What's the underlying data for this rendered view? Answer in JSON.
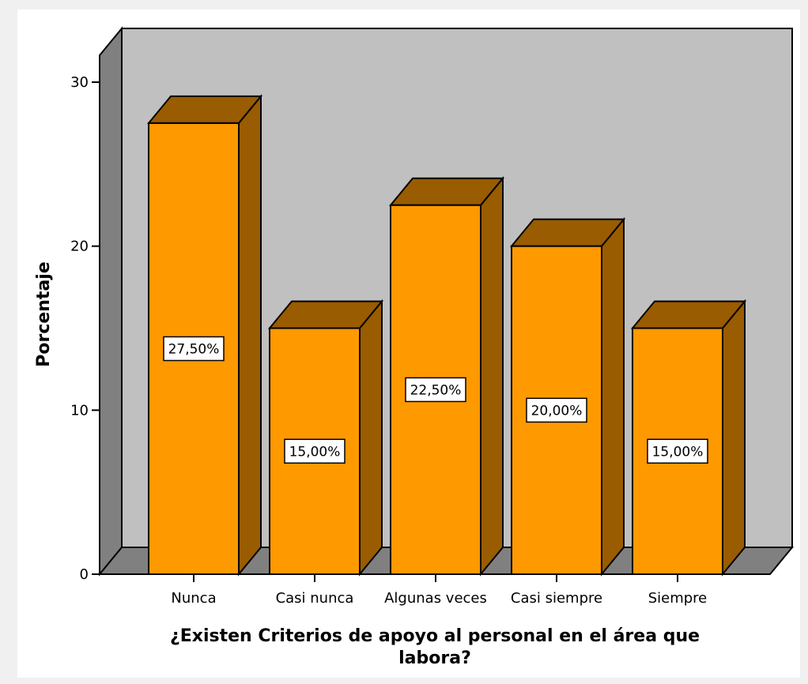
{
  "chart_data": {
    "type": "bar",
    "categories": [
      "Nunca",
      "Casi nunca",
      "Algunas veces",
      "Casi siempre",
      "Siempre"
    ],
    "values": [
      27.5,
      15.0,
      22.5,
      20.0,
      15.0
    ],
    "data_labels": [
      "27,50%",
      "15,00%",
      "22,50%",
      "20,00%",
      "15,00%"
    ],
    "title": "",
    "xlabel_lines": [
      "¿Existen  Criterios de apoyo al personal en el área que",
      "labora?"
    ],
    "ylabel": "Porcentaje",
    "ylim": [
      0,
      30
    ],
    "yticks": [
      0,
      10,
      20,
      30
    ],
    "grid": false,
    "style": "3d",
    "colors": {
      "bar_front": "#ff9900",
      "bar_side": "#995c00",
      "bar_top": "#995c00",
      "back_wall": "#c0c0c0",
      "side_wall": "#808080",
      "floor": "#808080"
    }
  }
}
